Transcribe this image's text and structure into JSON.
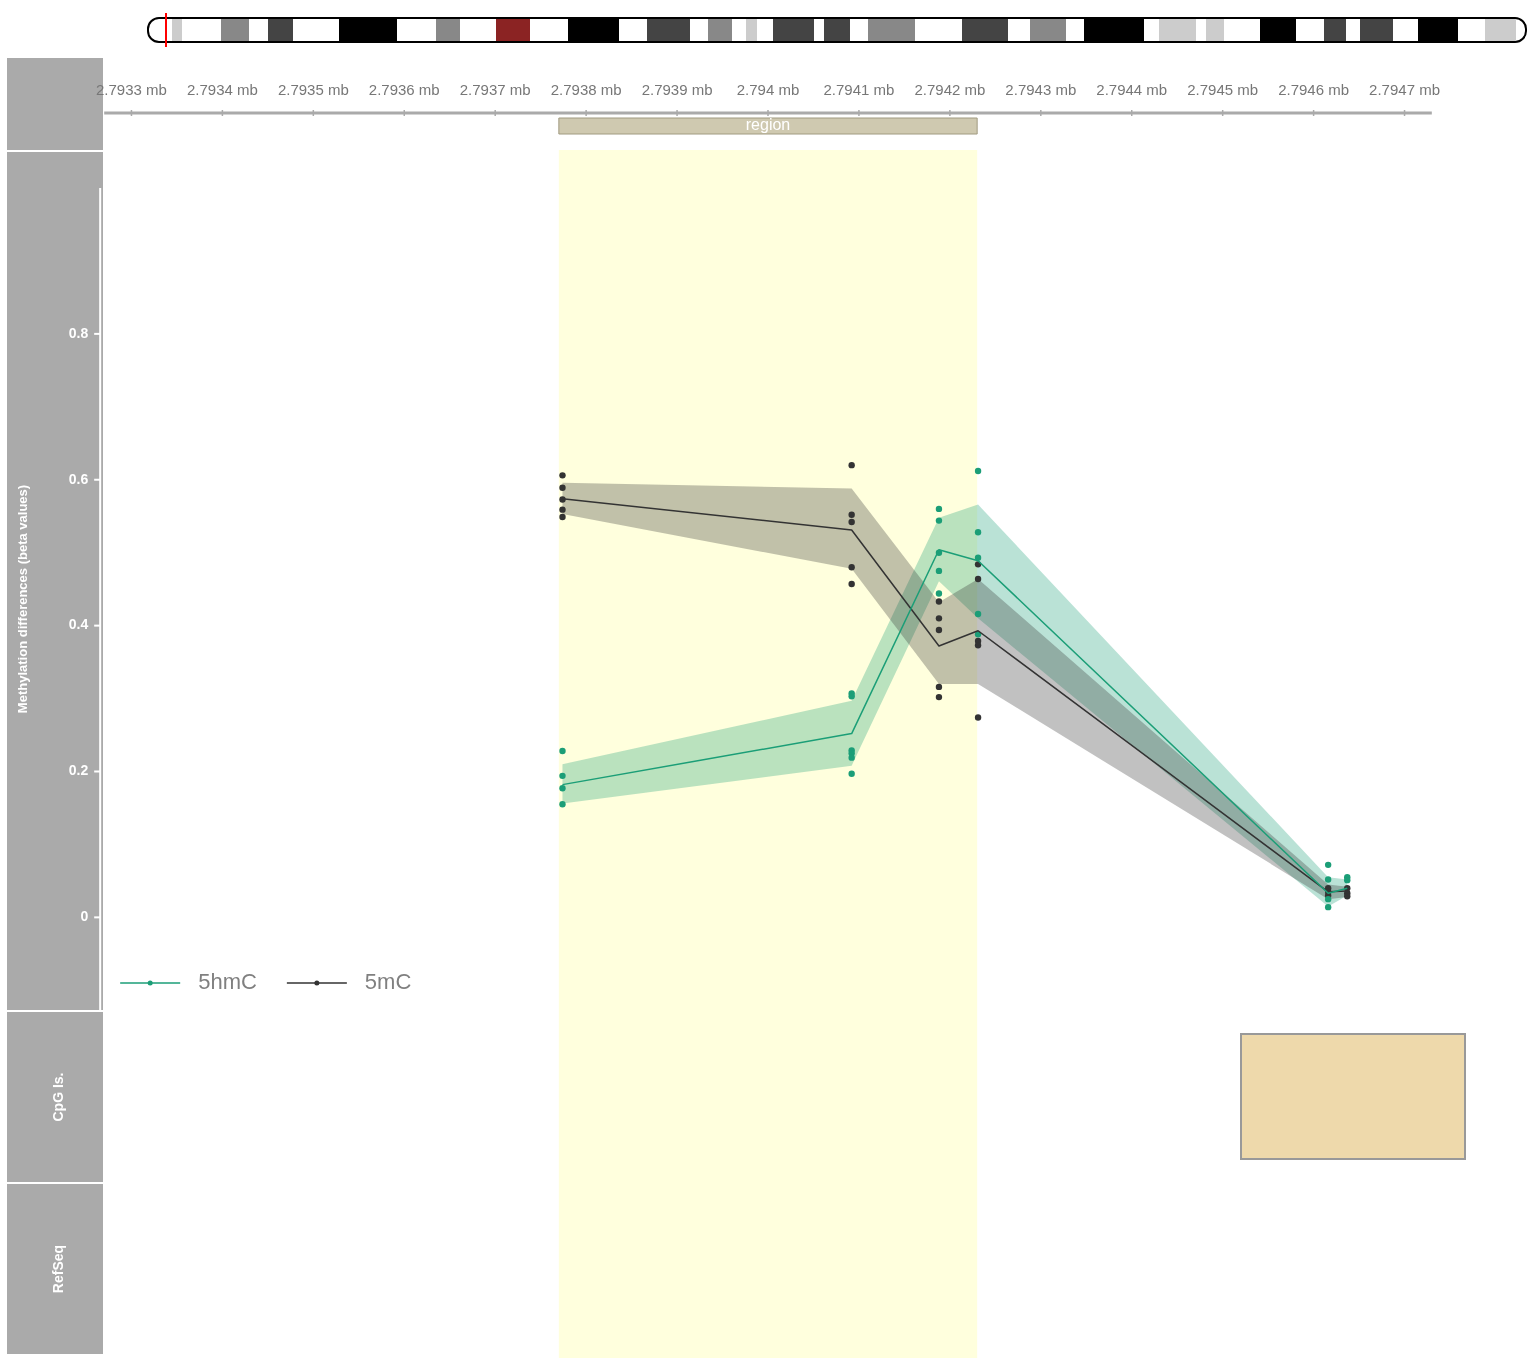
{
  "chart_data": {
    "type": "line",
    "ylabel": "Methylation differences (beta values)",
    "x": [
      2.793774,
      2.794092,
      2.794188,
      2.794231,
      2.794616,
      2.794637
    ],
    "xlim": [
      2.79327,
      2.79473
    ],
    "xticks": [
      {
        "value": 2.7933,
        "label": "2.7933 mb"
      },
      {
        "value": 2.7934,
        "label": "2.7934 mb"
      },
      {
        "value": 2.7935,
        "label": "2.7935 mb"
      },
      {
        "value": 2.7936,
        "label": "2.7936 mb"
      },
      {
        "value": 2.7937,
        "label": "2.7937 mb"
      },
      {
        "value": 2.7938,
        "label": "2.7938 mb"
      },
      {
        "value": 2.7939,
        "label": "2.7939 mb"
      },
      {
        "value": 2.794,
        "label": "2.794 mb"
      },
      {
        "value": 2.7941,
        "label": "2.7941 mb"
      },
      {
        "value": 2.7942,
        "label": "2.7942 mb"
      },
      {
        "value": 2.7943,
        "label": "2.7943 mb"
      },
      {
        "value": 2.7944,
        "label": "2.7944 mb"
      },
      {
        "value": 2.7945,
        "label": "2.7945 mb"
      },
      {
        "value": 2.7946,
        "label": "2.7946 mb"
      },
      {
        "value": 2.7947,
        "label": "2.7947 mb"
      }
    ],
    "ylim": [
      -0.127,
      1.0
    ],
    "yticks": [
      0,
      0.2,
      0.4,
      0.6,
      0.8
    ],
    "grid": false,
    "legend": "bottom left",
    "series": [
      {
        "name": "5hmC",
        "type": "line",
        "color": "#1b9e77",
        "values": [
          0.182,
          0.252,
          0.504,
          0.489,
          0.033,
          0.04
        ],
        "lower": [
          0.156,
          0.208,
          0.461,
          0.41,
          0.015,
          0.03
        ],
        "upper": [
          0.21,
          0.297,
          0.548,
          0.566,
          0.055,
          0.052
        ]
      },
      {
        "name": "5mC",
        "type": "line",
        "color": "#333333",
        "values": [
          0.574,
          0.531,
          0.372,
          0.393,
          0.035,
          0.036
        ],
        "lower": [
          0.553,
          0.478,
          0.32,
          0.32,
          0.025,
          0.028
        ],
        "upper": [
          0.596,
          0.588,
          0.432,
          0.464,
          0.045,
          0.042
        ]
      },
      {
        "type": "scatter",
        "marker": "circle",
        "color": "#1b9e77",
        "x": [
          2.793774,
          2.793774,
          2.793774,
          2.793774,
          2.794092,
          2.794092,
          2.794092,
          2.794092,
          2.794092,
          2.794092,
          2.794188,
          2.794188,
          2.794188,
          2.794188,
          2.794188,
          2.794231,
          2.794231,
          2.794231,
          2.794231,
          2.794231,
          2.794616,
          2.794616,
          2.794616,
          2.794616,
          2.794637,
          2.794637
        ],
        "values": [
          0.228,
          0.194,
          0.177,
          0.155,
          0.307,
          0.303,
          0.229,
          0.225,
          0.219,
          0.197,
          0.56,
          0.544,
          0.5,
          0.475,
          0.444,
          0.612,
          0.528,
          0.493,
          0.416,
          0.388,
          0.072,
          0.052,
          0.025,
          0.014,
          0.055,
          0.051
        ]
      },
      {
        "type": "scatter",
        "marker": "circle",
        "color": "#333333",
        "x": [
          2.793774,
          2.793774,
          2.793774,
          2.793774,
          2.793774,
          2.794092,
          2.794092,
          2.794092,
          2.794092,
          2.794092,
          2.794188,
          2.794188,
          2.794188,
          2.794188,
          2.794188,
          2.794231,
          2.794231,
          2.794231,
          2.794231,
          2.794231,
          2.794616,
          2.794616,
          2.794616,
          2.794637,
          2.794637,
          2.794637
        ],
        "values": [
          0.606,
          0.589,
          0.573,
          0.559,
          0.549,
          0.62,
          0.552,
          0.542,
          0.48,
          0.457,
          0.433,
          0.41,
          0.394,
          0.316,
          0.302,
          0.484,
          0.464,
          0.379,
          0.373,
          0.274,
          0.04,
          0.035,
          0.03,
          0.04,
          0.033,
          0.029
        ]
      }
    ],
    "bands": [
      {
        "axis": "x",
        "from": 2.79377,
        "to": 2.79423,
        "label": "region",
        "color": "#ffffdd"
      }
    ],
    "annotations": [
      "CpG Is.",
      "RefSeq"
    ]
  }
}
